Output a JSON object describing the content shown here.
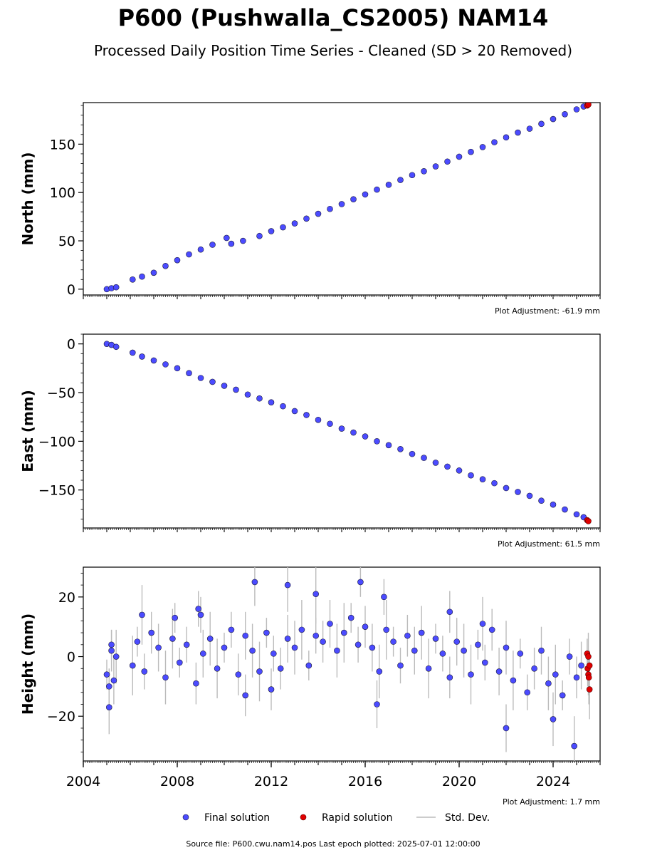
{
  "figure": {
    "title": "P600 (Pushwalla_CS2005) NAM14",
    "subtitle": "Processed Daily Position Time Series - Cleaned (SD > 20 Removed)",
    "source_line": "Source file: P600.cwu.nam14.pos  Last epoch plotted: 2025-07-01 12:00:00"
  },
  "legend": {
    "final": "Final solution",
    "rapid": "Rapid solution",
    "std": "Std. Dev."
  },
  "colors": {
    "final": "#4b4bff",
    "rapid": "#e00000",
    "std": "#bbbbbb",
    "edge": "#1a1a3a"
  },
  "chart_data": [
    {
      "type": "scatter",
      "ylabel": "North (mm)",
      "adjustment": "Plot Adjustment: -61.9 mm",
      "xlim": [
        2004.0,
        2026.0
      ],
      "ylim": [
        -6,
        193
      ],
      "yticks": [
        0,
        50,
        100,
        150
      ],
      "ytick_labels": [
        "0",
        "50",
        "100",
        "150"
      ],
      "show_error_bars": false,
      "series": [
        {
          "name": "Final solution",
          "x": [
            2005.0,
            2005.2,
            2005.4,
            2006.1,
            2006.5,
            2007.0,
            2007.5,
            2008.0,
            2008.5,
            2009.0,
            2009.5,
            2010.1,
            2010.3,
            2010.8,
            2011.5,
            2012.0,
            2012.5,
            2013.0,
            2013.5,
            2014.0,
            2014.5,
            2015.0,
            2015.5,
            2016.0,
            2016.5,
            2017.0,
            2017.5,
            2018.0,
            2018.5,
            2019.0,
            2019.5,
            2020.0,
            2020.5,
            2021.0,
            2021.5,
            2022.0,
            2022.5,
            2023.0,
            2023.5,
            2024.0,
            2024.5,
            2025.0,
            2025.3
          ],
          "y": [
            0,
            1,
            2,
            10,
            13,
            17,
            24,
            30,
            36,
            41,
            46,
            53,
            47,
            50,
            55,
            60,
            64,
            68,
            73,
            78,
            83,
            88,
            93,
            98,
            103,
            108,
            113,
            118,
            122,
            127,
            132,
            137,
            142,
            147,
            152,
            157,
            162,
            166,
            171,
            176,
            181,
            186,
            189
          ]
        },
        {
          "name": "Rapid solution",
          "x": [
            2025.45,
            2025.5
          ],
          "y": [
            190,
            191
          ]
        }
      ]
    },
    {
      "type": "scatter",
      "ylabel": "East (mm)",
      "adjustment": "Plot Adjustment: 61.5 mm",
      "xlim": [
        2004.0,
        2026.0
      ],
      "ylim": [
        -189,
        10
      ],
      "yticks": [
        0,
        -50,
        -100,
        -150
      ],
      "ytick_labels": [
        "0",
        "−50",
        "−100",
        "−150"
      ],
      "show_error_bars": false,
      "series": [
        {
          "name": "Final solution",
          "x": [
            2005.0,
            2005.2,
            2005.4,
            2006.1,
            2006.5,
            2007.0,
            2007.5,
            2008.0,
            2008.5,
            2009.0,
            2009.5,
            2010.0,
            2010.5,
            2011.0,
            2011.5,
            2012.0,
            2012.5,
            2013.0,
            2013.5,
            2014.0,
            2014.5,
            2015.0,
            2015.5,
            2016.0,
            2016.5,
            2017.0,
            2017.5,
            2018.0,
            2018.5,
            2019.0,
            2019.5,
            2020.0,
            2020.5,
            2021.0,
            2021.5,
            2022.0,
            2022.5,
            2023.0,
            2023.5,
            2024.0,
            2024.5,
            2025.0,
            2025.3
          ],
          "y": [
            0,
            -1,
            -3,
            -9,
            -13,
            -17,
            -21,
            -25,
            -30,
            -35,
            -39,
            -43,
            -47,
            -52,
            -56,
            -60,
            -64,
            -69,
            -73,
            -78,
            -82,
            -87,
            -91,
            -95,
            -100,
            -104,
            -108,
            -113,
            -117,
            -122,
            -126,
            -130,
            -135,
            -139,
            -143,
            -148,
            -152,
            -156,
            -161,
            -165,
            -170,
            -175,
            -178
          ]
        },
        {
          "name": "Rapid solution",
          "x": [
            2025.45,
            2025.5
          ],
          "y": [
            -181,
            -182
          ]
        }
      ]
    },
    {
      "type": "scatter",
      "ylabel": "Height (mm)",
      "adjustment": "Plot Adjustment: 1.7 mm",
      "xlim": [
        2004.0,
        2026.0
      ],
      "ylim": [
        -35,
        30
      ],
      "yticks": [
        20,
        0,
        -20
      ],
      "ytick_labels": [
        "20",
        "0",
        "−20"
      ],
      "xticks": [
        2004,
        2008,
        2012,
        2016,
        2020,
        2024
      ],
      "xtick_labels": [
        "2004",
        "2008",
        "2012",
        "2016",
        "2020",
        "2024"
      ],
      "show_error_bars": true,
      "series": [
        {
          "name": "Final solution",
          "x": [
            2005.0,
            2005.1,
            2005.2,
            2005.3,
            2005.4,
            2006.1,
            2006.3,
            2006.6,
            2006.9,
            2007.2,
            2007.5,
            2007.8,
            2008.1,
            2008.4,
            2008.8,
            2009.1,
            2009.4,
            2009.7,
            2010.0,
            2010.3,
            2010.6,
            2010.9,
            2011.2,
            2011.5,
            2011.8,
            2012.1,
            2012.4,
            2012.7,
            2013.0,
            2013.3,
            2013.6,
            2013.9,
            2014.2,
            2014.5,
            2014.8,
            2015.1,
            2015.4,
            2015.7,
            2016.0,
            2016.3,
            2016.6,
            2016.9,
            2017.2,
            2017.5,
            2017.8,
            2018.1,
            2018.4,
            2018.7,
            2019.0,
            2019.3,
            2019.6,
            2019.9,
            2020.2,
            2020.5,
            2020.8,
            2021.1,
            2021.4,
            2021.7,
            2022.0,
            2022.3,
            2022.6,
            2022.9,
            2023.2,
            2023.5,
            2023.8,
            2024.1,
            2024.4,
            2024.7,
            2025.0,
            2025.2,
            2005.1,
            2006.5,
            2007.9,
            2008.9,
            2010.9,
            2011.3,
            2012.7,
            2013.9,
            2015.8,
            2016.8,
            2019.6,
            2022.0,
            2024.0,
            2024.9,
            2005.2,
            2009.0,
            2012.0,
            2016.5,
            2021.0
          ],
          "y": [
            -6,
            -10,
            2,
            -8,
            0,
            -3,
            5,
            -5,
            8,
            3,
            -7,
            6,
            -2,
            4,
            -9,
            1,
            6,
            -4,
            3,
            9,
            -6,
            7,
            2,
            -5,
            8,
            1,
            -4,
            6,
            3,
            9,
            -3,
            7,
            5,
            11,
            2,
            8,
            13,
            4,
            10,
            3,
            -5,
            9,
            5,
            -3,
            7,
            2,
            8,
            -4,
            6,
            1,
            -7,
            5,
            2,
            -6,
            4,
            -2,
            9,
            -5,
            3,
            -8,
            1,
            -12,
            -4,
            2,
            -9,
            -6,
            -13,
            0,
            -7,
            -3,
            -17,
            14,
            13,
            16,
            -13,
            25,
            24,
            21,
            25,
            20,
            15,
            -24,
            -21,
            -30,
            4,
            14,
            -11,
            -16,
            11
          ]
        },
        {
          "name": "Rapid solution",
          "x": [
            2025.45,
            2025.47,
            2025.5,
            2025.5,
            2025.52,
            2025.55,
            2025.55
          ],
          "y": [
            1,
            -4,
            -6,
            0,
            -7,
            -11,
            -3
          ]
        }
      ]
    }
  ]
}
